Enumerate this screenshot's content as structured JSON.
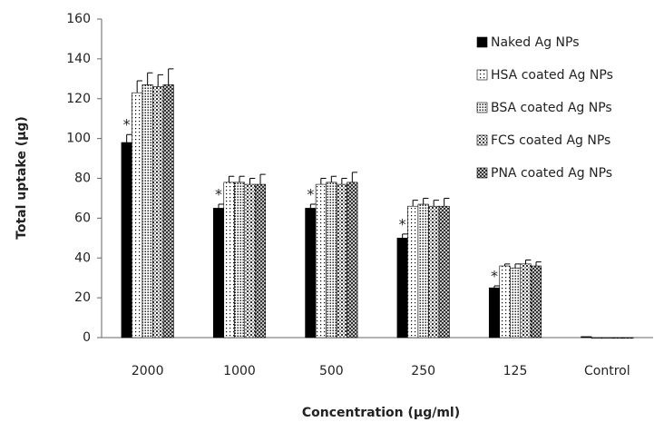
{
  "chart_data": {
    "type": "bar",
    "x_label": "Concentration (µg/ml)",
    "y_label": "Total uptake (µg)",
    "categories": [
      "2000",
      "1000",
      "500",
      "250",
      "125",
      "Control"
    ],
    "series": [
      {
        "name": "Naked Ag NPs",
        "color": "#000000",
        "pattern": "solid",
        "values": [
          98,
          65,
          65,
          50,
          25,
          0.5
        ],
        "errors": [
          4,
          2,
          2,
          2,
          1,
          0
        ]
      },
      {
        "name": "HSA coated Ag NPs",
        "color": "#000000",
        "pattern": "dots",
        "values": [
          123,
          78,
          77,
          66,
          36,
          0
        ],
        "errors": [
          6,
          3,
          3,
          3,
          1,
          0
        ]
      },
      {
        "name": "BSA coated Ag NPs",
        "color": "#000000",
        "pattern": "dense-dots",
        "values": [
          127,
          78,
          78,
          67,
          35,
          0
        ],
        "errors": [
          6,
          3,
          3,
          3,
          2,
          0
        ]
      },
      {
        "name": "FCS coated  Ag NPs",
        "color": "#000000",
        "pattern": "grid",
        "values": [
          126,
          77,
          77,
          66,
          37,
          0
        ],
        "errors": [
          6,
          3,
          3,
          3,
          2,
          0
        ]
      },
      {
        "name": "PNA coated Ag NPs",
        "color": "#000000",
        "pattern": "crosshatch",
        "values": [
          127,
          77,
          78,
          66,
          36,
          0
        ],
        "errors": [
          8,
          5,
          5,
          4,
          2,
          0
        ]
      }
    ],
    "annotations": [
      "*",
      "*",
      "*",
      "*",
      "*",
      null
    ],
    "ylim": [
      0,
      160
    ],
    "yticks": [
      0,
      20,
      40,
      60,
      80,
      100,
      120,
      140,
      160
    ],
    "legend": "top-right"
  }
}
